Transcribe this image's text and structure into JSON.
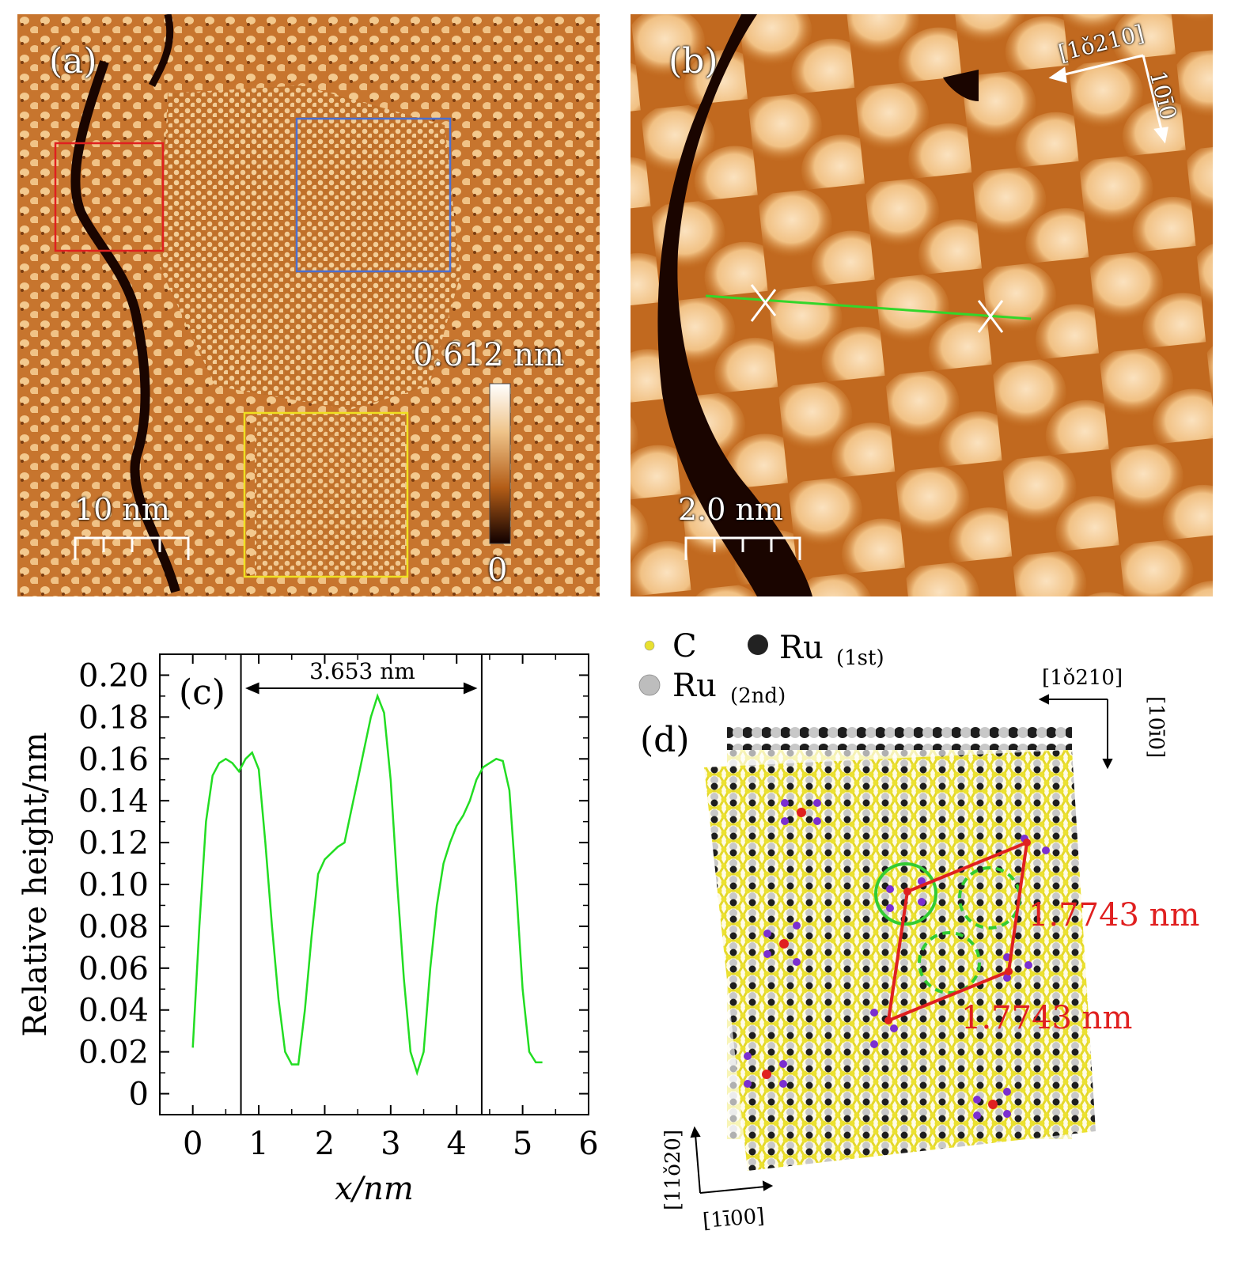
{
  "panel_a": {
    "label": "(a)",
    "colorbar_max": "0.612 nm",
    "colorbar_min": "0",
    "scale_bar": "10 nm"
  },
  "panel_b": {
    "label": "(b)",
    "scale_bar": "2.0 nm",
    "dir_x": "[1ǒ210]",
    "dir_y": "10ī0"
  },
  "panel_c": {
    "label": "(c)",
    "distance_label": "3.653 nm",
    "chart_data": {
      "type": "line",
      "xlabel": "x/nm",
      "ylabel": "Relative height/nm",
      "xlim": [
        -0.5,
        6
      ],
      "ylim": [
        -0.01,
        0.21
      ],
      "x_ticks": [
        0,
        1,
        2,
        3,
        4,
        5,
        6
      ],
      "x_tick_labels": [
        "0",
        "1",
        "2",
        "3",
        "4",
        "5",
        "6"
      ],
      "y_ticks": [
        0,
        0.02,
        0.04,
        0.06,
        0.08,
        0.1,
        0.12,
        0.14,
        0.16,
        0.18,
        0.2
      ],
      "y_tick_labels": [
        "0",
        "0.02",
        "0.04",
        "0.06",
        "0.08",
        "0.10",
        "0.12",
        "0.14",
        "0.16",
        "0.18",
        "0.20"
      ],
      "vlines": [
        0.73,
        4.38
      ],
      "series": [
        {
          "color": "#22dd22",
          "x": [
            0,
            0.1,
            0.2,
            0.3,
            0.4,
            0.5,
            0.6,
            0.7,
            0.8,
            0.9,
            1.0,
            1.1,
            1.2,
            1.3,
            1.4,
            1.5,
            1.6,
            1.7,
            1.8,
            1.9,
            2.0,
            2.1,
            2.2,
            2.3,
            2.4,
            2.5,
            2.6,
            2.7,
            2.8,
            2.9,
            3.0,
            3.1,
            3.2,
            3.3,
            3.4,
            3.5,
            3.6,
            3.7,
            3.8,
            3.9,
            4.0,
            4.1,
            4.2,
            4.3,
            4.4,
            4.5,
            4.6,
            4.7,
            4.8,
            4.9,
            5.0,
            5.1,
            5.2,
            5.3
          ],
          "y": [
            0.022,
            0.08,
            0.13,
            0.152,
            0.158,
            0.16,
            0.158,
            0.154,
            0.16,
            0.163,
            0.155,
            0.12,
            0.08,
            0.045,
            0.02,
            0.014,
            0.014,
            0.04,
            0.075,
            0.105,
            0.112,
            0.115,
            0.118,
            0.12,
            0.135,
            0.15,
            0.165,
            0.18,
            0.19,
            0.182,
            0.15,
            0.1,
            0.055,
            0.02,
            0.01,
            0.02,
            0.06,
            0.09,
            0.11,
            0.12,
            0.128,
            0.133,
            0.14,
            0.15,
            0.156,
            0.158,
            0.16,
            0.159,
            0.145,
            0.1,
            0.05,
            0.02,
            0.015,
            0.015
          ]
        }
      ]
    }
  },
  "panel_d": {
    "label": "(d)",
    "legend_c": "C",
    "legend_ru1": "Ru",
    "legend_ru1_sub": "(1st)",
    "legend_ru2": "Ru",
    "legend_ru2_sub": "(2nd)",
    "dir_top_x": "[1ǒ210]",
    "dir_top_y": "[10ī0]",
    "dir_bottom_y": "[11ǒ20]",
    "dir_bottom_x": "[1ī00]",
    "length_1": "1.7743 nm",
    "length_2": "1.7743 nm",
    "colors": {
      "carbon": "#e8e030",
      "ru1": "#222222",
      "ru2": "#bdbdbd",
      "purple": "#7b2fd0",
      "red": "#e02020",
      "green": "#33cc33"
    }
  }
}
